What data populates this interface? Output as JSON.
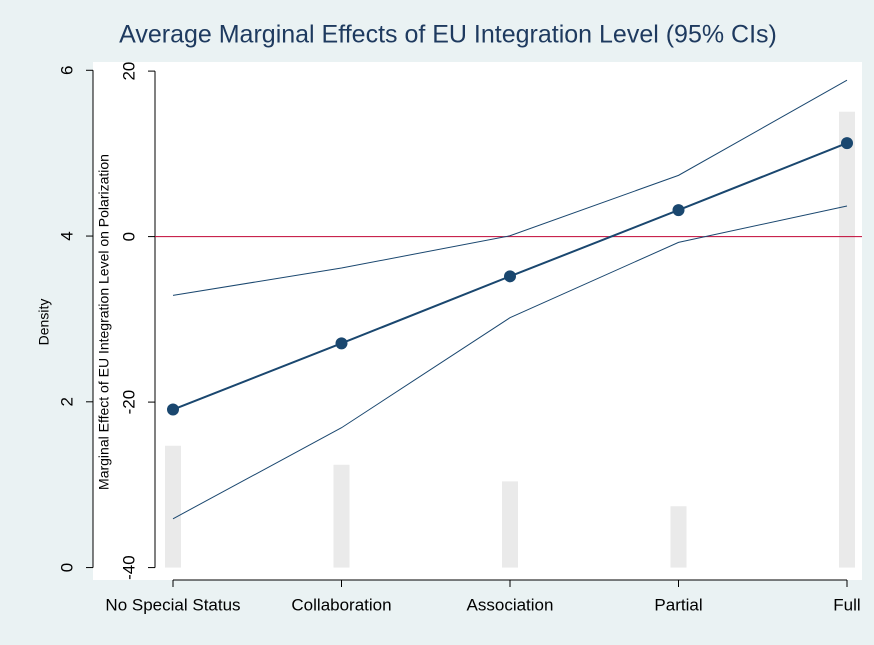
{
  "chart_data": {
    "type": "line",
    "title": "Average Marginal Effects of EU Integration Level (95% CIs)",
    "ylabel": "Density",
    "y2label": "Marginal Effect of EU Integration Level on Polarization",
    "categories": [
      "No Special Status",
      "Collaboration",
      "Association",
      "Partial",
      "Full"
    ],
    "series": [
      {
        "name": "Density",
        "type": "bar",
        "color": "#eaeaea",
        "values": [
          1.47,
          1.24,
          1.04,
          0.74,
          5.5
        ]
      },
      {
        "name": "Marginal effect",
        "type": "line",
        "axis": "y2",
        "color": "#1a476f",
        "values": [
          -20.9,
          -12.9,
          -4.8,
          3.2,
          11.3
        ],
        "upper": [
          -7.1,
          -3.8,
          0.1,
          7.4,
          18.9
        ],
        "lower": [
          -34.1,
          -23.1,
          -9.8,
          -0.7,
          3.7
        ]
      }
    ],
    "reference_line": {
      "value": 0,
      "axis": "y2",
      "color": "#c10534"
    },
    "ylim": [
      -0.15,
      6.1
    ],
    "yticks": [
      0,
      2,
      4,
      6
    ],
    "y2lim": [
      -41.5,
      21.1
    ],
    "y2ticks": [
      -40,
      -20,
      0,
      20
    ]
  }
}
